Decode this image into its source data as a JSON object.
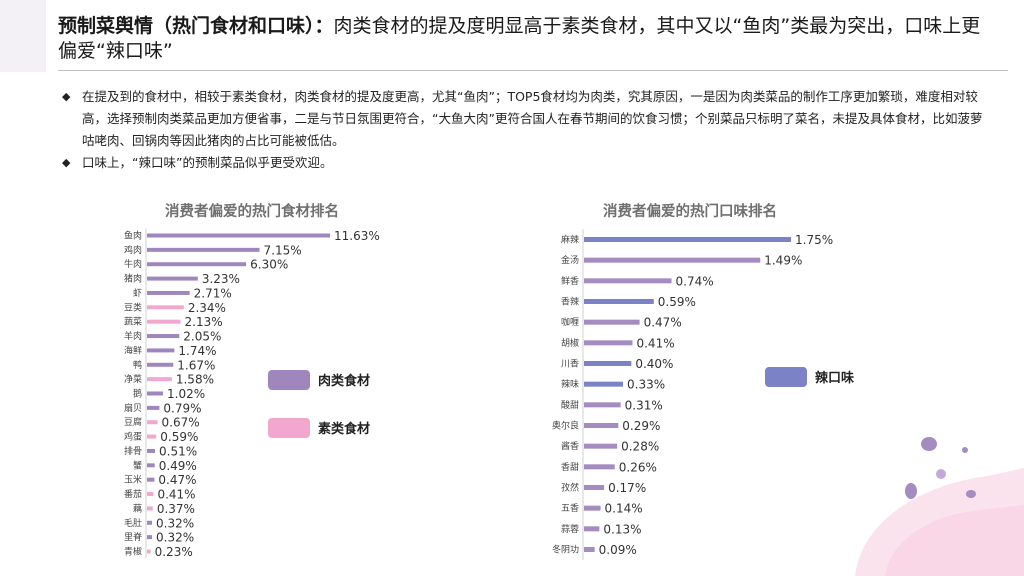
{
  "header": {
    "title_bold": "预制菜舆情（热门食材和口味）：",
    "title_rest": "肉类食材的提及度明显高于素类食材，其中又以“鱼肉”类最为突出，口味上更偏爱“辣口味”"
  },
  "bullets": [
    "在提及到的食材中，相较于素类食材，肉类食材的提及度更高，尤其“鱼肉”；TOP5食材均为肉类，究其原因，一是因为肉类菜品的制作工序更加繁琐，难度相对较高，选择预制肉类菜品更加方便省事，二是与节日氛围更符合，“大鱼大肉”更符合国人在春节期间的饮食习惯；个别菜品只标明了菜名，未提及具体食材，比如菠萝咕咾肉、回锅肉等因此猪肉的占比可能被低估。",
    "口味上，“辣口味”的预制菜品似乎更受欢迎。"
  ],
  "bullet_mark": "◆",
  "colors": {
    "meat": "#9f86bd",
    "veg": "#f2a7ce",
    "spicy": "#7b82c6",
    "other_taste": "#a48cc0"
  },
  "chart_data": [
    {
      "type": "bar",
      "orientation": "horizontal",
      "title": "消费者偏爱的热门食材排名",
      "value_suffix": "%",
      "categories": [
        "鱼肉",
        "鸡肉",
        "牛肉",
        "猪肉",
        "虾",
        "豆类",
        "蔬菜",
        "羊肉",
        "海鲜",
        "鸭",
        "净菜",
        "鹅",
        "扇贝",
        "豆腐",
        "鸡蛋",
        "排骨",
        "蟹",
        "玉米",
        "番茄",
        "藕",
        "毛肚",
        "里脊",
        "青椒"
      ],
      "values": [
        11.63,
        7.15,
        6.3,
        3.23,
        2.71,
        2.34,
        2.13,
        2.05,
        1.74,
        1.67,
        1.58,
        1.02,
        0.79,
        0.67,
        0.59,
        0.51,
        0.49,
        0.47,
        0.41,
        0.37,
        0.32,
        0.32,
        0.23
      ],
      "value_labels": [
        "11.63%",
        "7.15%",
        "6.30%",
        "3.23%",
        "2.71%",
        "2.34%",
        "2.13%",
        "2.05%",
        "1.74%",
        "1.67%",
        "1.58%",
        "1.02%",
        "0.79%",
        "0.67%",
        "0.59%",
        "0.51%",
        "0.49%",
        "0.47%",
        "0.41%",
        "0.37%",
        "0.32%",
        "0.32%",
        "0.23%"
      ],
      "groups": [
        "meat",
        "meat",
        "meat",
        "meat",
        "meat",
        "veg",
        "veg",
        "meat",
        "meat",
        "meat",
        "veg",
        "meat",
        "meat",
        "veg",
        "veg",
        "meat",
        "meat",
        "meat",
        "veg",
        "veg",
        "meat",
        "meat",
        "veg"
      ],
      "legend": [
        {
          "key": "meat",
          "label": "肉类食材"
        },
        {
          "key": "veg",
          "label": "素类食材"
        }
      ]
    },
    {
      "type": "bar",
      "orientation": "horizontal",
      "title": "消费者偏爱的热门口味排名",
      "value_suffix": "%",
      "categories": [
        "麻辣",
        "金汤",
        "鲜香",
        "香辣",
        "咖喱",
        "胡椒",
        "川香",
        "辣味",
        "酸甜",
        "奥尔良",
        "酱香",
        "香甜",
        "孜然",
        "五香",
        "蒜蓉",
        "冬阴功"
      ],
      "values": [
        1.75,
        1.49,
        0.74,
        0.59,
        0.47,
        0.41,
        0.4,
        0.33,
        0.31,
        0.29,
        0.28,
        0.26,
        0.17,
        0.14,
        0.13,
        0.09
      ],
      "value_labels": [
        "1.75%",
        "1.49%",
        "0.74%",
        "0.59%",
        "0.47%",
        "0.41%",
        "0.40%",
        "0.33%",
        "0.31%",
        "0.29%",
        "0.28%",
        "0.26%",
        "0.17%",
        "0.14%",
        "0.13%",
        "0.09%"
      ],
      "groups": [
        "spicy",
        "other_taste",
        "other_taste",
        "spicy",
        "other_taste",
        "other_taste",
        "spicy",
        "spicy",
        "other_taste",
        "other_taste",
        "other_taste",
        "other_taste",
        "other_taste",
        "other_taste",
        "other_taste",
        "other_taste"
      ],
      "legend": [
        {
          "key": "spicy",
          "label": "辣口味"
        }
      ]
    }
  ]
}
